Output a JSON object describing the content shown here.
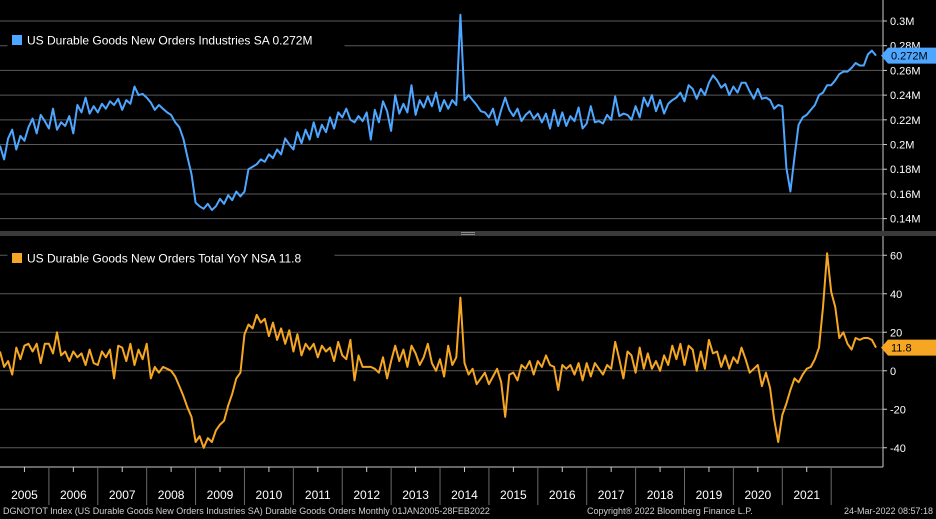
{
  "chart_data": [
    {
      "type": "line",
      "legend": "US Durable Goods New Orders Industries SA 0.272M",
      "last_value_label": "0.272M",
      "yticks": [
        {
          "v": 0.14,
          "label": "0.14M"
        },
        {
          "v": 0.16,
          "label": "0.16M"
        },
        {
          "v": 0.18,
          "label": "0.18M"
        },
        {
          "v": 0.2,
          "label": "0.2M"
        },
        {
          "v": 0.22,
          "label": "0.22M"
        },
        {
          "v": 0.24,
          "label": "0.24M"
        },
        {
          "v": 0.26,
          "label": "0.26M"
        },
        {
          "v": 0.28,
          "label": "0.28M"
        },
        {
          "v": 0.3,
          "label": "0.3M"
        }
      ],
      "ylim": [
        0.13,
        0.317
      ],
      "color": "#4da6ff",
      "x_start": "2005-01",
      "values": [
        0.199,
        0.188,
        0.205,
        0.212,
        0.196,
        0.207,
        0.203,
        0.214,
        0.221,
        0.209,
        0.224,
        0.219,
        0.213,
        0.229,
        0.212,
        0.218,
        0.215,
        0.223,
        0.209,
        0.232,
        0.226,
        0.238,
        0.225,
        0.231,
        0.226,
        0.233,
        0.229,
        0.235,
        0.232,
        0.237,
        0.228,
        0.236,
        0.233,
        0.247,
        0.24,
        0.241,
        0.238,
        0.234,
        0.228,
        0.232,
        0.229,
        0.226,
        0.224,
        0.218,
        0.214,
        0.205,
        0.19,
        0.176,
        0.153,
        0.15,
        0.148,
        0.152,
        0.147,
        0.15,
        0.156,
        0.152,
        0.159,
        0.155,
        0.162,
        0.158,
        0.162,
        0.18,
        0.182,
        0.184,
        0.188,
        0.186,
        0.192,
        0.189,
        0.196,
        0.192,
        0.205,
        0.2,
        0.196,
        0.21,
        0.201,
        0.212,
        0.204,
        0.218,
        0.206,
        0.216,
        0.21,
        0.222,
        0.213,
        0.226,
        0.222,
        0.229,
        0.22,
        0.218,
        0.223,
        0.219,
        0.226,
        0.204,
        0.228,
        0.218,
        0.235,
        0.227,
        0.211,
        0.24,
        0.225,
        0.233,
        0.226,
        0.248,
        0.224,
        0.236,
        0.23,
        0.239,
        0.231,
        0.242,
        0.227,
        0.236,
        0.229,
        0.236,
        0.232,
        0.305,
        0.236,
        0.24,
        0.236,
        0.232,
        0.227,
        0.226,
        0.222,
        0.229,
        0.216,
        0.228,
        0.238,
        0.228,
        0.223,
        0.229,
        0.219,
        0.224,
        0.227,
        0.221,
        0.225,
        0.218,
        0.225,
        0.213,
        0.228,
        0.215,
        0.226,
        0.215,
        0.223,
        0.219,
        0.23,
        0.213,
        0.217,
        0.231,
        0.218,
        0.219,
        0.217,
        0.224,
        0.22,
        0.239,
        0.223,
        0.225,
        0.224,
        0.22,
        0.231,
        0.222,
        0.238,
        0.231,
        0.24,
        0.227,
        0.236,
        0.225,
        0.233,
        0.236,
        0.238,
        0.242,
        0.235,
        0.248,
        0.245,
        0.237,
        0.245,
        0.24,
        0.25,
        0.256,
        0.252,
        0.246,
        0.249,
        0.24,
        0.247,
        0.242,
        0.25,
        0.25,
        0.243,
        0.237,
        0.245,
        0.237,
        0.238,
        0.236,
        0.229,
        0.232,
        0.231,
        0.181,
        0.162,
        0.19,
        0.216,
        0.222,
        0.224,
        0.228,
        0.232,
        0.24,
        0.242,
        0.248,
        0.248,
        0.252,
        0.257,
        0.259,
        0.259,
        0.262,
        0.266,
        0.264,
        0.264,
        0.273,
        0.276,
        0.272
      ]
    },
    {
      "type": "line",
      "legend": "US Durable Goods New Orders Total YoY NSA 11.8",
      "last_value_label": "11.8",
      "yticks": [
        {
          "v": -40,
          "label": "-40"
        },
        {
          "v": -20,
          "label": "-20"
        },
        {
          "v": 0,
          "label": "0"
        },
        {
          "v": 20,
          "label": "20"
        },
        {
          "v": 40,
          "label": "40"
        },
        {
          "v": 60,
          "label": "60"
        }
      ],
      "ylim": [
        -50,
        70
      ],
      "color": "#f5a623",
      "x_start": "2005-01",
      "values": [
        10,
        2,
        5,
        -2,
        12,
        6,
        13,
        14,
        10,
        14,
        4,
        14,
        14,
        9,
        20,
        8,
        10,
        5,
        10,
        7,
        9,
        3,
        11,
        4,
        3,
        10,
        7,
        11,
        -4,
        13,
        12,
        5,
        14,
        3,
        11,
        6,
        14,
        -4,
        2,
        -1,
        2,
        1,
        0,
        -3,
        -8,
        -13,
        -19,
        -24,
        -37,
        -34,
        -40,
        -35,
        -37,
        -31,
        -28,
        -26,
        -18,
        -12,
        -4,
        -1,
        19,
        24,
        22,
        29,
        25,
        27,
        18,
        25,
        16,
        22,
        14,
        21,
        10,
        19,
        8,
        14,
        11,
        14,
        7,
        13,
        10,
        12,
        5,
        15,
        8,
        6,
        16,
        -5,
        8,
        2,
        2,
        2,
        1,
        -1,
        7,
        -4,
        5,
        13,
        5,
        11,
        2,
        13,
        9,
        3,
        7,
        14,
        4,
        0,
        6,
        -3,
        13,
        3,
        7,
        38,
        4,
        -2,
        1,
        -7,
        -4,
        -1,
        -7,
        -3,
        1,
        -6,
        -24,
        -2,
        -1,
        -5,
        3,
        1,
        5,
        -2,
        5,
        2,
        8,
        3,
        2,
        -10,
        3,
        1,
        3,
        -2,
        4,
        -5,
        4,
        -3,
        4,
        1,
        -2,
        3,
        1,
        15,
        6,
        -4,
        10,
        8,
        -1,
        12,
        1,
        9,
        1,
        5,
        0,
        8,
        3,
        13,
        6,
        14,
        3,
        13,
        11,
        0,
        10,
        1,
        16,
        9,
        10,
        2,
        8,
        1,
        7,
        4,
        12,
        6,
        -1,
        1,
        3,
        -8,
        -1,
        -9,
        -25,
        -37,
        -23,
        -17,
        -10,
        -4,
        -6,
        -2,
        1,
        2,
        6,
        12,
        33,
        61,
        41,
        33,
        17,
        20,
        14,
        11,
        17,
        16,
        17,
        17,
        16,
        12
      ]
    }
  ],
  "x_axis": {
    "years": [
      "2005",
      "2006",
      "2007",
      "2008",
      "2009",
      "2010",
      "2011",
      "2012",
      "2013",
      "2014",
      "2015",
      "2016",
      "2017",
      "2018",
      "2019",
      "2020",
      "2021"
    ],
    "range": [
      "2005-01",
      "2022-02"
    ]
  },
  "footer": {
    "left": "DGNOTOT Index (US Durable Goods New Orders Industries SA) Durable Goods Orders  Monthly 01JAN2005-28FEB2022",
    "center": "Copyright® 2022 Bloomberg Finance L.P.",
    "right": "24-Mar-2022 08:57:18"
  },
  "colors": {
    "background": "#000000",
    "grid": "#5a5a5a",
    "axis_text": "#ffffff",
    "series1": "#4da6ff",
    "series2": "#f5a623"
  }
}
